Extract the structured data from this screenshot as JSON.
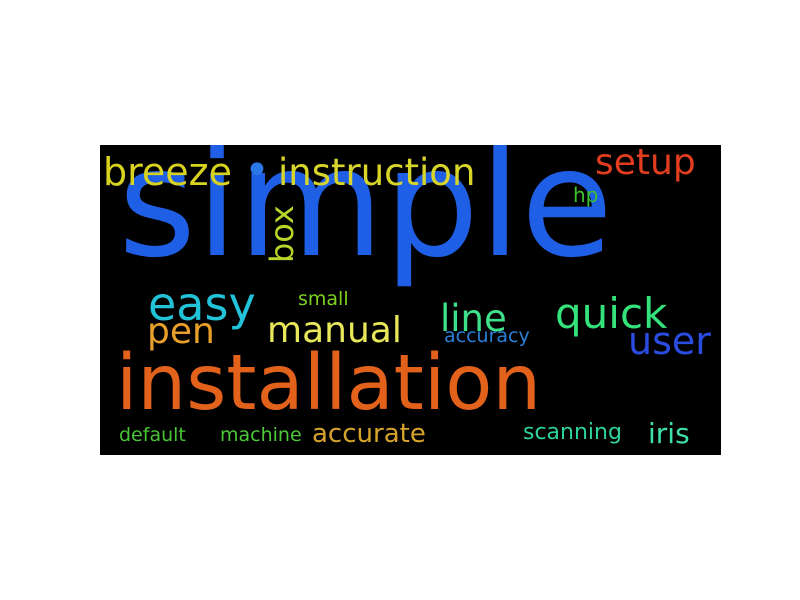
{
  "words": {
    "simple": {
      "text": "simple",
      "color": "#1f5fe6"
    },
    "installation": {
      "text": "installation",
      "color": "#e2621c"
    },
    "breeze": {
      "text": "breeze",
      "color": "#d7d11f"
    },
    "bullet": {
      "text": "•",
      "color": "#2a77e8"
    },
    "instruction": {
      "text": "instruction",
      "color": "#d8d52a"
    },
    "setup": {
      "text": "setup",
      "color": "#e23d1e"
    },
    "hp": {
      "text": "hp",
      "color": "#3cc12c"
    },
    "box": {
      "text": "box",
      "color": "#b6d62a"
    },
    "easy": {
      "text": "easy",
      "color": "#22c3d8"
    },
    "small": {
      "text": "small",
      "color": "#7ed321"
    },
    "pen": {
      "text": "pen",
      "color": "#e8a02a"
    },
    "manual": {
      "text": "manual",
      "color": "#e8e85a"
    },
    "line": {
      "text": "line",
      "color": "#3ee08a"
    },
    "quick": {
      "text": "quick",
      "color": "#33e27a"
    },
    "accuracy": {
      "text": "accuracy",
      "color": "#2a7fd9"
    },
    "user": {
      "text": "user",
      "color": "#2a4ce0"
    },
    "default": {
      "text": "default",
      "color": "#49c436"
    },
    "machine": {
      "text": "machine",
      "color": "#4fc83a"
    },
    "accurate": {
      "text": "accurate",
      "color": "#d6a42a"
    },
    "scanning": {
      "text": "scanning",
      "color": "#2ed39a"
    },
    "iris": {
      "text": "iris",
      "color": "#3fe0a8"
    }
  }
}
